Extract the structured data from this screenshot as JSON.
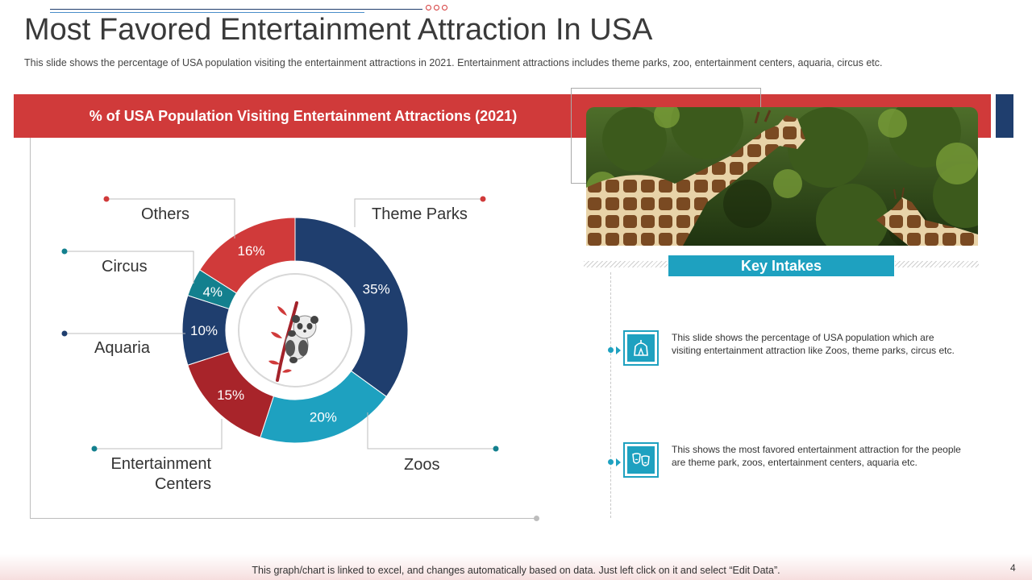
{
  "slide": {
    "title": "Most Favored Entertainment Attraction In USA",
    "subtitle": "This slide shows the percentage of USA population visiting the entertainment attractions in 2021. Entertainment attractions includes theme parks, zoo, entertainment centers, aquaria, circus etc.",
    "band_title": "% of USA Population Visiting Entertainment Attractions (2021)",
    "footer": "This graph/chart is linked to excel, and changes automatically based on data. Just left click on it and select “Edit Data”.",
    "page_number": "4"
  },
  "key_intakes": {
    "heading": "Key Intakes",
    "items": [
      {
        "icon": "circus-tent-icon",
        "text": "This slide shows the percentage of USA population which are visiting entertainment attraction like Zoos, theme parks, circus etc."
      },
      {
        "icon": "theater-masks-icon",
        "text": "This shows the most favored entertainment attraction for the people are theme park, zoos, entertainment centers, aquaria etc."
      }
    ]
  },
  "colors": {
    "red": "#d03a3a",
    "navy": "#1f3e6e",
    "teal": "#1ea1c0",
    "dark_teal": "#13808e",
    "dark_red": "#a8242a"
  },
  "chart_data": {
    "type": "pie",
    "variant": "donut",
    "categories": [
      "Theme Parks",
      "Zoos",
      "Entertainment Centers",
      "Aquaria",
      "Circus",
      "Others"
    ],
    "values": [
      35,
      20,
      15,
      10,
      4,
      16
    ],
    "value_labels": [
      "35%",
      "20%",
      "15%",
      "10%",
      "4%",
      "16%"
    ],
    "colors": [
      "#1f3e6e",
      "#1ea1c0",
      "#a8242a",
      "#1f3e6e",
      "#13808e",
      "#d03a3a"
    ],
    "center_icon": "panda-icon",
    "label_placement": "callouts around the donut"
  }
}
